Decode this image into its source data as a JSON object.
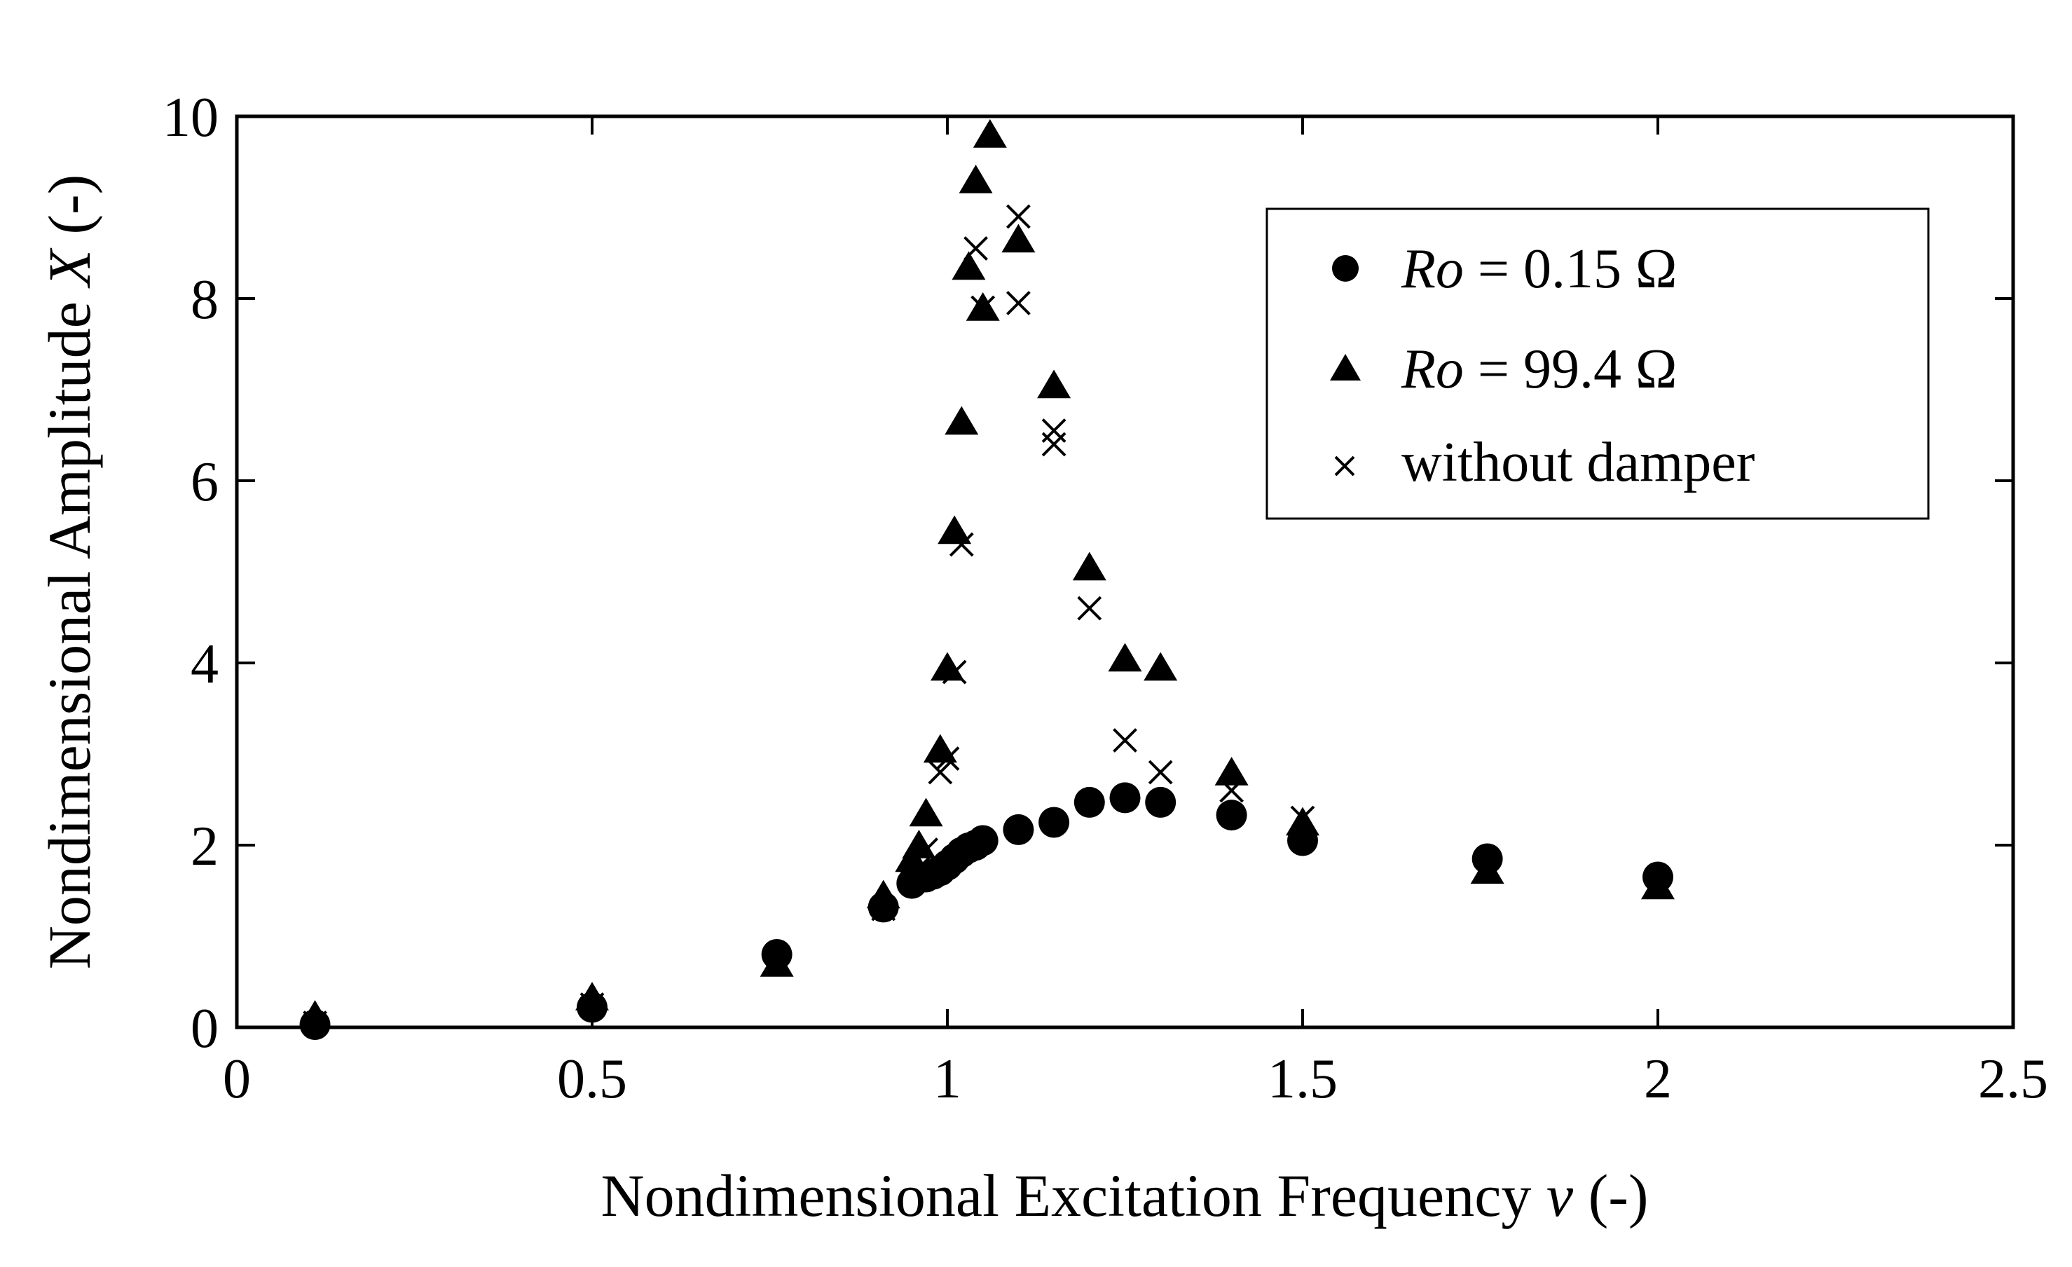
{
  "chart_data": {
    "type": "scatter",
    "title": "",
    "xlabel": "Nondimensional Excitation Frequency",
    "xlabel_symbol": "ν",
    "xlabel_unit": "(-)",
    "ylabel": "Nondimensional Amplitude",
    "ylabel_symbol": "X",
    "ylabel_unit": "(-)",
    "xlim": [
      0,
      2.5
    ],
    "ylim": [
      0,
      10
    ],
    "xticks": [
      0,
      0.5,
      1,
      1.5,
      2,
      2.5
    ],
    "xtick_labels": [
      "0",
      "0.5",
      "1",
      "1.5",
      "2",
      "2.5"
    ],
    "yticks": [
      0,
      2,
      4,
      6,
      8,
      10
    ],
    "ytick_labels": [
      "0",
      "2",
      "4",
      "6",
      "8",
      "10"
    ],
    "grid": false,
    "legend_position": "top-right",
    "series": [
      {
        "name": "Ro = 0.15 Ω",
        "name_italic": "Ro",
        "name_rest": " = 0.15 Ω",
        "marker": "circle",
        "x": [
          0.11,
          0.5,
          0.76,
          0.91,
          0.95,
          0.97,
          0.98,
          0.99,
          1.0,
          1.01,
          1.02,
          1.03,
          1.04,
          1.05,
          1.1,
          1.15,
          1.2,
          1.25,
          1.3,
          1.4,
          1.5,
          1.76,
          2.0
        ],
        "y": [
          0.03,
          0.22,
          0.8,
          1.32,
          1.58,
          1.65,
          1.68,
          1.72,
          1.78,
          1.85,
          1.92,
          1.97,
          2.0,
          2.05,
          2.17,
          2.25,
          2.47,
          2.52,
          2.47,
          2.33,
          2.05,
          1.85,
          1.65
        ]
      },
      {
        "name": "Ro = 99.4 Ω",
        "name_italic": "Ro",
        "name_rest": " = 99.4 Ω",
        "marker": "triangle",
        "x": [
          0.11,
          0.5,
          0.76,
          0.91,
          0.95,
          0.96,
          0.97,
          0.99,
          1.0,
          1.01,
          1.02,
          1.03,
          1.04,
          1.05,
          1.06,
          1.1,
          1.15,
          1.2,
          1.25,
          1.3,
          1.4,
          1.5,
          1.76,
          2.0
        ],
        "y": [
          0.13,
          0.33,
          0.7,
          1.45,
          1.85,
          2.0,
          2.35,
          3.05,
          3.95,
          5.45,
          6.65,
          8.35,
          9.3,
          7.9,
          9.8,
          8.65,
          7.05,
          5.05,
          4.05,
          3.95,
          2.8,
          2.25,
          1.72,
          1.55
        ]
      },
      {
        "name": "without damper",
        "marker": "x",
        "x": [
          0.11,
          0.5,
          0.76,
          0.91,
          0.95,
          0.96,
          0.97,
          0.99,
          1.0,
          1.01,
          1.02,
          1.04,
          1.05,
          1.1,
          1.1,
          1.15,
          1.15,
          1.2,
          1.25,
          1.3,
          1.4,
          1.5,
          1.76,
          2.0
        ],
        "y": [
          0.05,
          0.25,
          0.72,
          1.3,
          1.6,
          1.75,
          1.95,
          2.8,
          2.95,
          3.9,
          5.3,
          8.55,
          7.9,
          8.9,
          7.95,
          6.55,
          6.4,
          4.6,
          3.15,
          2.8,
          2.6,
          2.3,
          1.75,
          1.55
        ]
      }
    ]
  }
}
